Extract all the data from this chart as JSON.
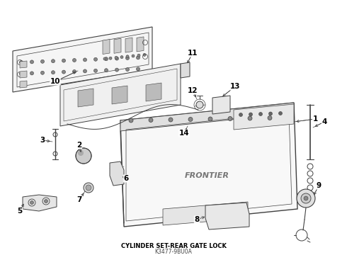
{
  "title": "CYLINDER SET-REAR GATE LOCK",
  "part_number": "K3477-9BU0A",
  "background_color": "#ffffff",
  "line_color": "#404040",
  "fig_width": 4.9,
  "fig_height": 3.6,
  "dpi": 100
}
